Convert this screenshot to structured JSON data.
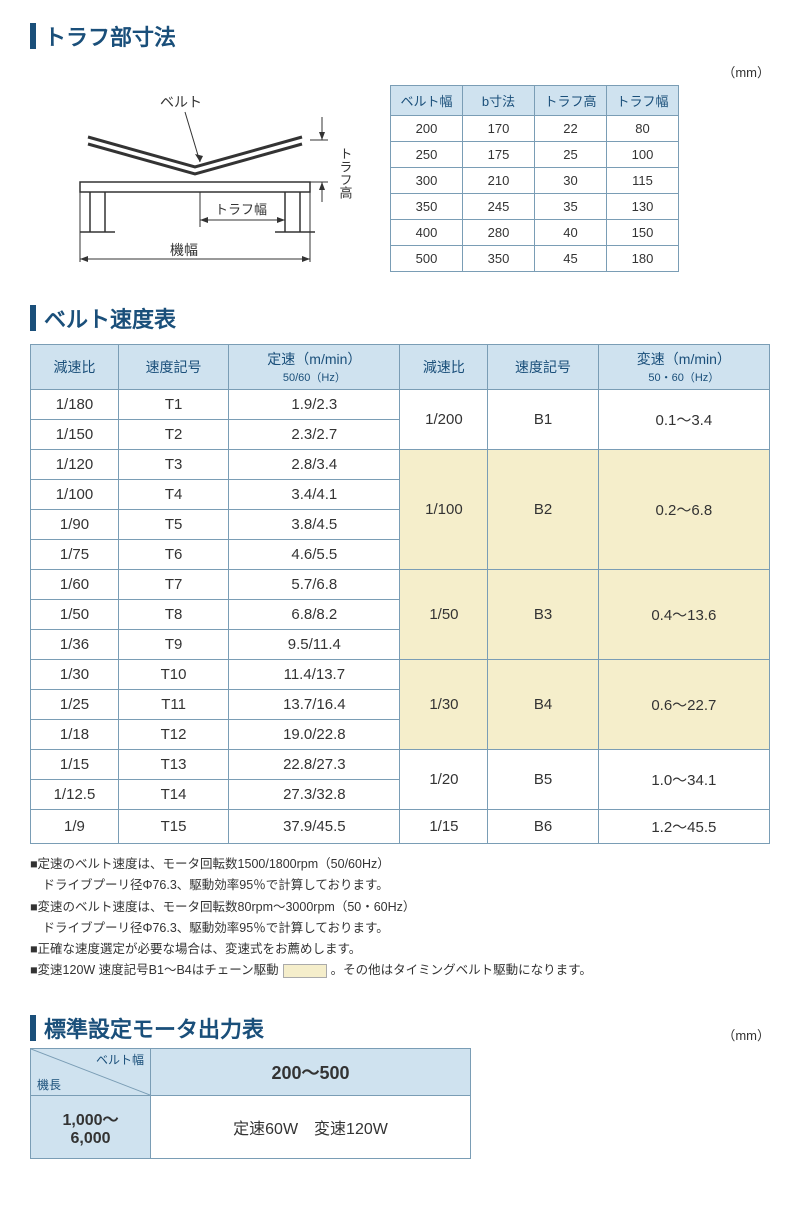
{
  "colors": {
    "heading": "#1a4f7a",
    "header_bg": "#cfe2ef",
    "border": "#7a9db5",
    "yellow_bg": "#f5eecb"
  },
  "section1": {
    "title": "トラフ部寸法",
    "unit": "（mm）",
    "diagram_labels": {
      "belt": "ベルト",
      "trough_height": "トラフ高",
      "trough_width": "トラフ幅",
      "machine_width": "機幅"
    },
    "table": {
      "columns": [
        "ベルト幅",
        "b寸法",
        "トラフ高",
        "トラフ幅"
      ],
      "rows": [
        [
          "200",
          "170",
          "22",
          "80"
        ],
        [
          "250",
          "175",
          "25",
          "100"
        ],
        [
          "300",
          "210",
          "30",
          "115"
        ],
        [
          "350",
          "245",
          "35",
          "130"
        ],
        [
          "400",
          "280",
          "40",
          "150"
        ],
        [
          "500",
          "350",
          "45",
          "180"
        ]
      ]
    }
  },
  "section2": {
    "title": "ベルト速度表",
    "columns_left": {
      "ratio": "減速比",
      "code": "速度記号",
      "speed": "定速（m/min）",
      "speed_sub": "50/60（Hz）"
    },
    "columns_right": {
      "ratio": "減速比",
      "code": "速度記号",
      "speed": "変速（m/min）",
      "speed_sub": "50・60（Hz）"
    },
    "left_rows": [
      [
        "1/180",
        "T1",
        "1.9/2.3"
      ],
      [
        "1/150",
        "T2",
        "2.3/2.7"
      ],
      [
        "1/120",
        "T3",
        "2.8/3.4"
      ],
      [
        "1/100",
        "T4",
        "3.4/4.1"
      ],
      [
        "1/90",
        "T5",
        "3.8/4.5"
      ],
      [
        "1/75",
        "T6",
        "4.6/5.5"
      ],
      [
        "1/60",
        "T7",
        "5.7/6.8"
      ],
      [
        "1/50",
        "T8",
        "6.8/8.2"
      ],
      [
        "1/36",
        "T9",
        "9.5/11.4"
      ],
      [
        "1/30",
        "T10",
        "11.4/13.7"
      ],
      [
        "1/25",
        "T11",
        "13.7/16.4"
      ],
      [
        "1/18",
        "T12",
        "19.0/22.8"
      ],
      [
        "1/15",
        "T13",
        "22.8/27.3"
      ],
      [
        "1/12.5",
        "T14",
        "27.3/32.8"
      ],
      [
        "1/9",
        "T15",
        "37.9/45.5"
      ]
    ],
    "right_groups": [
      {
        "span": 2,
        "ratio": "1/200",
        "code": "B1",
        "speed": "0.1～3.4",
        "yellow": false
      },
      {
        "span": 4,
        "ratio": "1/100",
        "code": "B2",
        "speed": "0.2～6.8",
        "yellow": true
      },
      {
        "span": 3,
        "ratio": "1/50",
        "code": "B3",
        "speed": "0.4～13.6",
        "yellow": true
      },
      {
        "span": 3,
        "ratio": "1/30",
        "code": "B4",
        "speed": "0.6～22.7",
        "yellow": true
      },
      {
        "span": 2,
        "ratio": "1/20",
        "code": "B5",
        "speed": "1.0～34.1",
        "yellow": false
      },
      {
        "span": 1,
        "ratio": "1/15",
        "code": "B6",
        "speed": "1.2～45.5",
        "yellow": false
      }
    ],
    "notes": [
      "■定速のベルト速度は、モータ回転数1500/1800rpm（50/60Hz）",
      "　ドライブプーリ径Φ76.3、駆動効率95％で計算しております。",
      "■変速のベルト速度は、モータ回転数80rpm～3000rpm（50・60Hz）",
      "　ドライブプーリ径Φ76.3、駆動効率95％で計算しております。",
      "■正確な速度選定が必要な場合は、変速式をお薦めします。"
    ],
    "note_chip_prefix": "■変速120W 速度記号B1～B4はチェーン駆動",
    "note_chip_suffix": "。その他はタイミングベルト駆動になります。"
  },
  "section3": {
    "title": "標準設定モータ出力表",
    "unit": "（mm）",
    "diag_top": "ベルト幅",
    "diag_bottom": "機長",
    "col_header": "200～500",
    "row_header": "1,000～6,000",
    "cell": "定速60W　変速120W"
  }
}
